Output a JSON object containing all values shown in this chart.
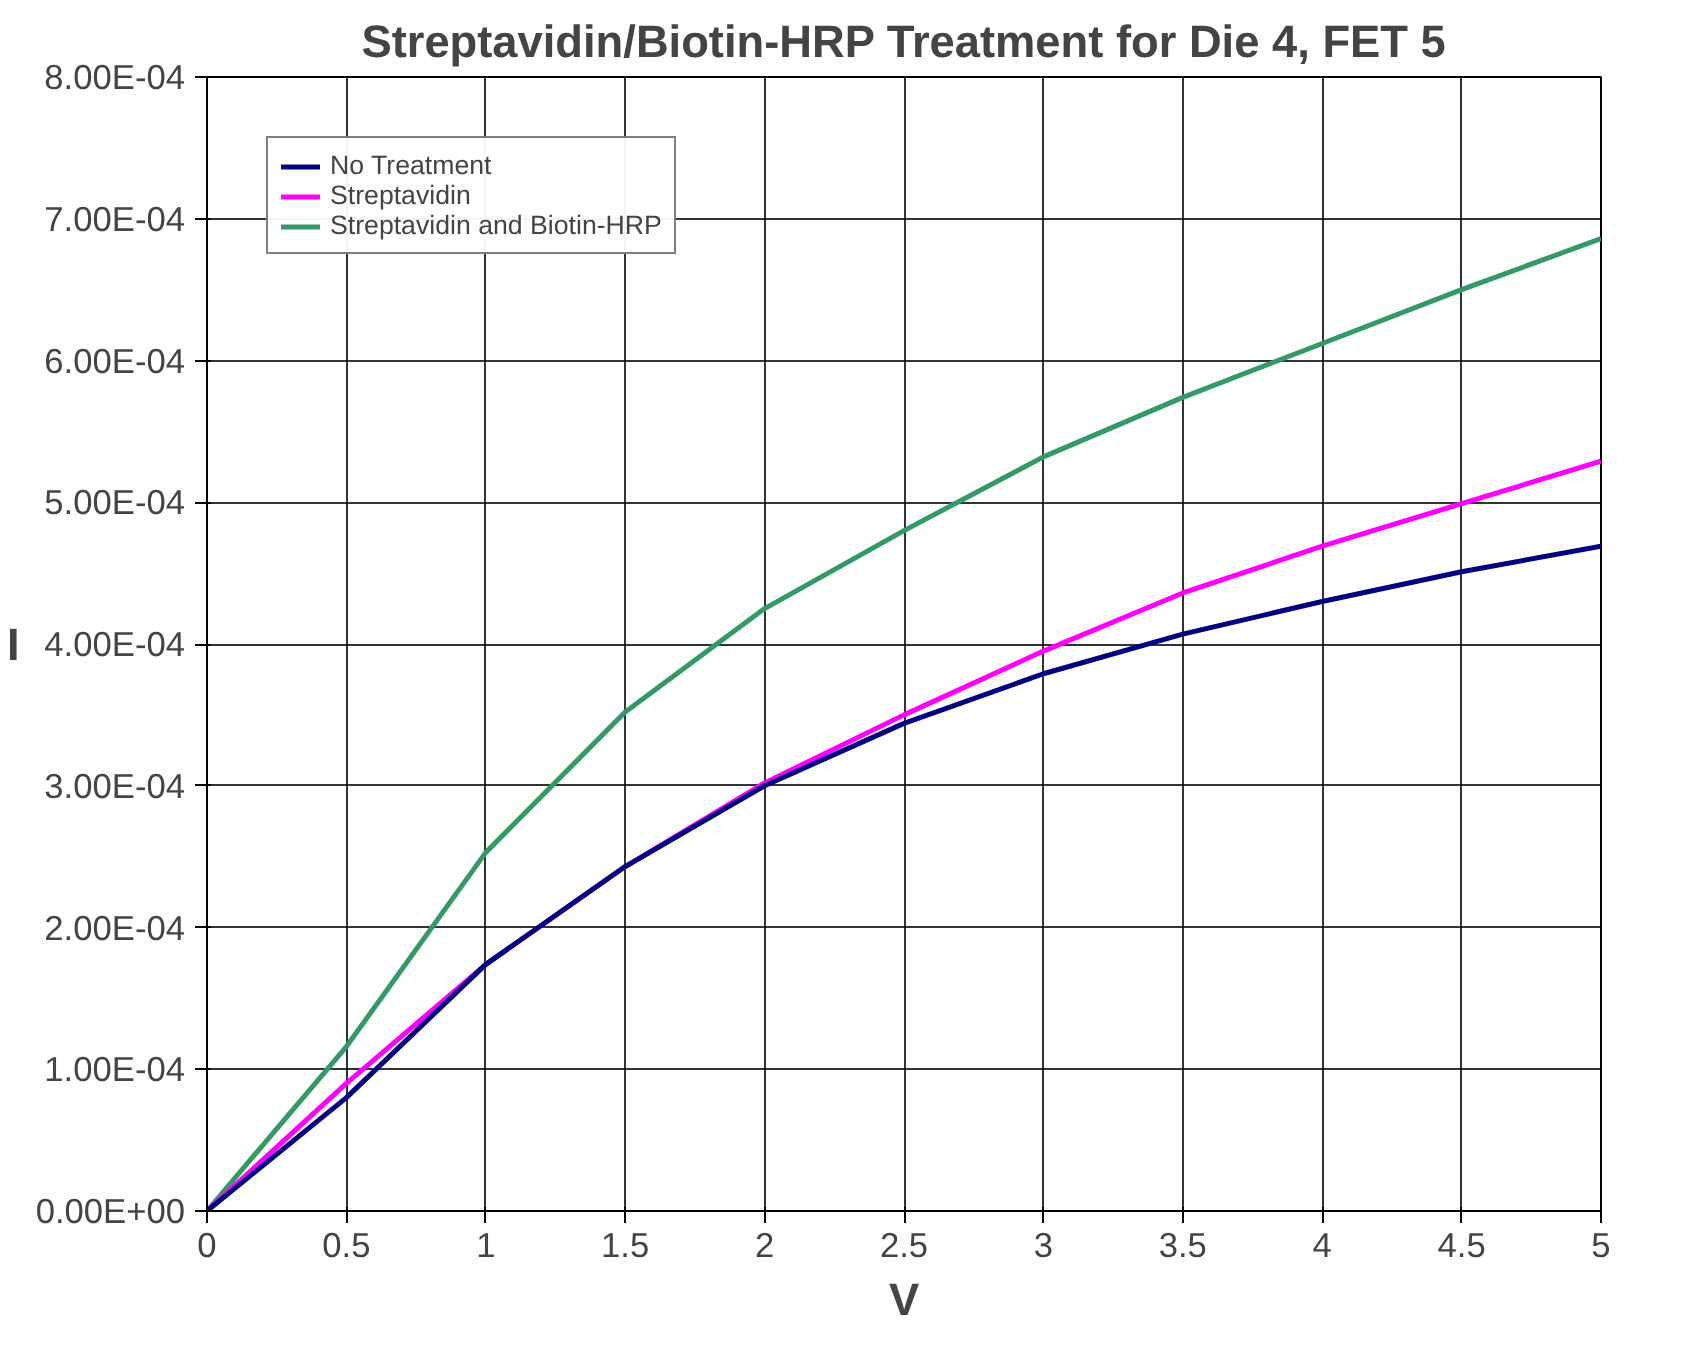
{
  "chart_data": {
    "type": "line",
    "title": "Streptavidin/Biotin-HRP Treatment for Die 4, FET 5",
    "xlabel": "V",
    "ylabel": "I",
    "x": [
      0,
      0.5,
      1,
      1.5,
      2,
      2.5,
      3,
      3.5,
      4,
      4.5,
      5
    ],
    "series": [
      {
        "name": "No Treatment",
        "color": "#000080",
        "values": [
          0,
          8e-05,
          0.000174,
          0.000243,
          0.0003,
          0.000344,
          0.000379,
          0.000407,
          0.00043,
          0.000451,
          0.000469
        ]
      },
      {
        "name": "Streptavidin",
        "color": "#ff00ff",
        "values": [
          0,
          9e-05,
          0.000174,
          0.000243,
          0.000302,
          0.00035,
          0.000395,
          0.000436,
          0.000469,
          0.000499,
          0.000529
        ]
      },
      {
        "name": "Streptavidin and Biotin-HRP",
        "color": "#339966",
        "values": [
          0,
          0.000116,
          0.000253,
          0.000352,
          0.000425,
          0.00048,
          0.000532,
          0.000574,
          0.000612,
          0.00065,
          0.000686
        ]
      }
    ],
    "xlim": [
      0,
      5
    ],
    "xticks": [
      0,
      0.5,
      1,
      1.5,
      2,
      2.5,
      3,
      3.5,
      4,
      4.5,
      5
    ],
    "ylim": [
      0,
      0.0008
    ],
    "yticks": [
      {
        "value": 0,
        "label": "0.00E+00"
      },
      {
        "value": 0.0001,
        "label": "1.00E-04"
      },
      {
        "value": 0.0002,
        "label": "2.00E-04"
      },
      {
        "value": 0.0003,
        "label": "3.00E-04"
      },
      {
        "value": 0.0004,
        "label": "4.00E-04"
      },
      {
        "value": 0.0005,
        "label": "5.00E-04"
      },
      {
        "value": 0.0006,
        "label": "6.00E-04"
      },
      {
        "value": 0.0007,
        "label": "7.00E-04"
      },
      {
        "value": 0.0008,
        "label": "8.00E-04"
      }
    ],
    "grid": true,
    "legend": "top left",
    "marker": "none",
    "line_style": "solid"
  }
}
